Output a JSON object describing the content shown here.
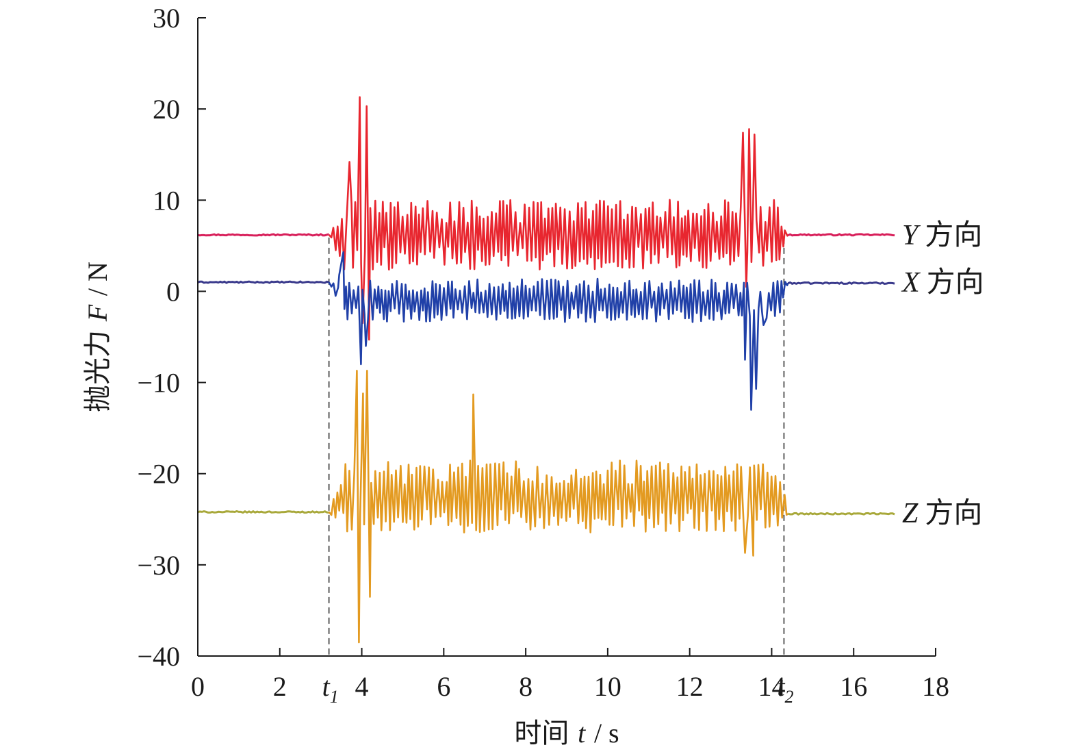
{
  "chart_data": {
    "type": "line",
    "xlabel": {
      "prefix": "时间",
      "symbol": "t",
      "unit": "/ s"
    },
    "ylabel": {
      "prefix": "抛光力",
      "symbol": "F",
      "unit": "/ N"
    },
    "xlim": [
      0,
      18
    ],
    "ylim": [
      -40,
      30
    ],
    "x_ticks": [
      "0",
      "2",
      "4",
      "6",
      "8",
      "10",
      "12",
      "14",
      "16",
      "18"
    ],
    "y_ticks": [
      "30",
      "20",
      "10",
      "0",
      "−10",
      "−20",
      "−30",
      "−40"
    ],
    "x_tick_values": [
      0,
      2,
      4,
      6,
      8,
      10,
      12,
      14,
      16,
      18
    ],
    "y_tick_values": [
      30,
      20,
      10,
      0,
      -10,
      -20,
      -30,
      -40
    ],
    "markers": [
      {
        "label": "t",
        "sub": "1",
        "x": 3.2
      },
      {
        "label": "t",
        "sub": "2",
        "x": 14.3
      }
    ],
    "grid": false,
    "series": [
      {
        "name": "Y",
        "suffix": "方向",
        "color": "#e8262f",
        "baseline_color": "#d81f5a",
        "baseline_start": 6.2,
        "baseline_end": 6.2,
        "amplitude": 3.2,
        "mean_active": 6.2,
        "bursts": [
          {
            "x": 3.7,
            "value": 14.2
          },
          {
            "x": 3.95,
            "value": 21.3
          },
          {
            "x": 4.02,
            "value": -3.5
          },
          {
            "x": 4.12,
            "value": 20.3
          },
          {
            "x": 4.18,
            "value": -5.3
          },
          {
            "x": 13.3,
            "value": 17.4
          },
          {
            "x": 13.45,
            "value": 17.8
          },
          {
            "x": 13.58,
            "value": 17.2
          },
          {
            "x": 13.38,
            "value": 0.5
          }
        ]
      },
      {
        "name": "X",
        "suffix": "方向",
        "color": "#2040a8",
        "baseline_color": "#3a3a8c",
        "baseline_start": 1.0,
        "baseline_end": 0.9,
        "amplitude": 2.0,
        "mean_active": -1.0,
        "bursts": [
          {
            "x": 3.45,
            "value": 1.8
          },
          {
            "x": 3.55,
            "value": 4.3
          },
          {
            "x": 3.98,
            "value": -8.0
          },
          {
            "x": 4.1,
            "value": -6.0
          },
          {
            "x": 13.35,
            "value": -7.5
          },
          {
            "x": 13.5,
            "value": -13.0
          },
          {
            "x": 13.62,
            "value": -10.7
          },
          {
            "x": 13.8,
            "value": -3.7
          }
        ]
      },
      {
        "name": "Z",
        "suffix": "方向",
        "color": "#e39a20",
        "baseline_color": "#a8a83a",
        "baseline_start": -24.2,
        "baseline_end": -24.4,
        "amplitude": 3.3,
        "mean_active": -22.5,
        "bursts": [
          {
            "x": 3.88,
            "value": -8.7
          },
          {
            "x": 3.93,
            "value": -38.5
          },
          {
            "x": 4.03,
            "value": -11.2
          },
          {
            "x": 4.13,
            "value": -8.7
          },
          {
            "x": 4.2,
            "value": -33.5
          },
          {
            "x": 6.72,
            "value": -11.3
          },
          {
            "x": 13.35,
            "value": -28.7
          },
          {
            "x": 13.55,
            "value": -29.0
          }
        ]
      }
    ]
  }
}
